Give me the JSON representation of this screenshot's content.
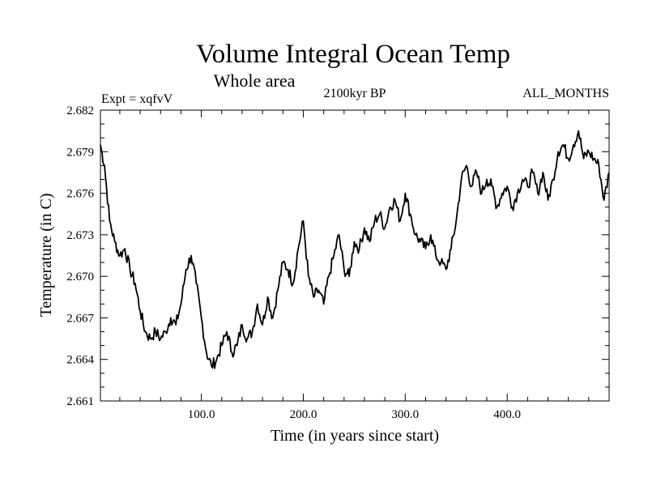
{
  "chart_data": {
    "type": "line",
    "title": "Volume Integral Ocean Temp",
    "subtitle": "Whole area",
    "left_label": "Expt = xqfvV",
    "center_label": "2100kyr BP",
    "right_label": "ALL_MONTHS",
    "xlabel": "Time (in years since start)",
    "ylabel": "Temperature (in C)",
    "xlim": [
      1,
      500
    ],
    "ylim": [
      2.661,
      2.682
    ],
    "x_ticks": [
      100,
      200,
      300,
      400
    ],
    "x_tick_labels": [
      "100.0",
      "200.0",
      "300.0",
      "400.0"
    ],
    "y_ticks": [
      2.661,
      2.664,
      2.667,
      2.67,
      2.673,
      2.676,
      2.679,
      2.682
    ],
    "y_tick_labels": [
      "2.661",
      "2.664",
      "2.667",
      "2.670",
      "2.673",
      "2.676",
      "2.679",
      "2.682"
    ],
    "grid": false,
    "series": [
      {
        "name": "Volume integral ocean temperature",
        "x": [
          1,
          5,
          10,
          15,
          20,
          25,
          30,
          35,
          40,
          45,
          50,
          55,
          60,
          65,
          70,
          75,
          80,
          85,
          90,
          95,
          100,
          105,
          110,
          115,
          120,
          125,
          130,
          135,
          140,
          145,
          150,
          155,
          160,
          165,
          170,
          175,
          180,
          185,
          190,
          195,
          200,
          205,
          210,
          215,
          220,
          225,
          230,
          235,
          240,
          245,
          250,
          255,
          260,
          265,
          270,
          275,
          280,
          285,
          290,
          295,
          300,
          305,
          310,
          315,
          320,
          325,
          330,
          335,
          340,
          345,
          350,
          355,
          360,
          365,
          370,
          375,
          380,
          385,
          390,
          395,
          400,
          405,
          410,
          415,
          420,
          425,
          430,
          435,
          440,
          445,
          450,
          455,
          460,
          465,
          470,
          475,
          480,
          485,
          490,
          495,
          500
        ],
        "y": [
          2.6795,
          2.678,
          2.674,
          2.6725,
          2.6715,
          2.672,
          2.6705,
          2.6695,
          2.6675,
          2.666,
          2.6655,
          2.666,
          2.6655,
          2.666,
          2.667,
          2.6665,
          2.668,
          2.6705,
          2.6715,
          2.6695,
          2.667,
          2.6645,
          2.6635,
          2.664,
          2.665,
          2.666,
          2.6645,
          2.665,
          2.6665,
          2.6655,
          2.666,
          2.668,
          2.6665,
          2.6685,
          2.667,
          2.669,
          2.671,
          2.6705,
          2.6695,
          2.672,
          2.674,
          2.67,
          2.6685,
          2.669,
          2.668,
          2.67,
          2.6715,
          2.673,
          2.6705,
          2.67,
          2.6725,
          2.672,
          2.6735,
          2.6725,
          2.674,
          2.6745,
          2.6735,
          2.675,
          2.6755,
          2.674,
          2.676,
          2.6745,
          2.673,
          2.6725,
          2.672,
          2.673,
          2.6715,
          2.671,
          2.6705,
          2.672,
          2.674,
          2.677,
          2.678,
          2.6765,
          2.6775,
          2.676,
          2.677,
          2.6765,
          2.675,
          2.676,
          2.6765,
          2.675,
          2.676,
          2.677,
          2.6765,
          2.6775,
          2.676,
          2.6775,
          2.6755,
          2.677,
          2.679,
          2.6795,
          2.6785,
          2.6795,
          2.6805,
          2.6785,
          2.679,
          2.6785,
          2.678,
          2.6755,
          2.6775
        ]
      }
    ]
  }
}
